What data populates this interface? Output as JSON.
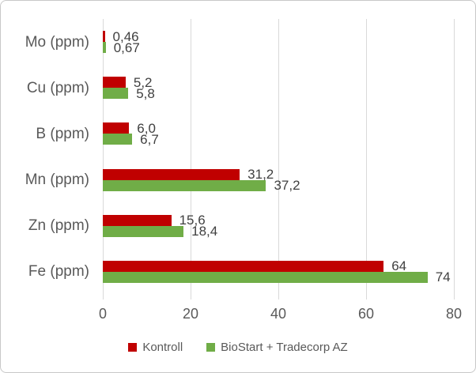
{
  "chart_data": {
    "type": "bar",
    "orientation": "horizontal",
    "title": "",
    "categories": [
      "Mo (ppm)",
      "Cu (ppm)",
      "B (ppm)",
      "Mn (ppm)",
      "Zn (ppm)",
      "Fe (ppm)"
    ],
    "series": [
      {
        "name": "Kontroll",
        "color": "#C00000",
        "values": [
          0.46,
          5.2,
          6.0,
          31.2,
          15.6,
          64
        ],
        "value_labels": [
          "0,46",
          "5,2",
          "6,0",
          "31,2",
          "15,6",
          "64"
        ]
      },
      {
        "name": "BioStart + Tradecorp AZ",
        "color": "#70AD47",
        "values": [
          0.67,
          5.8,
          6.7,
          37.2,
          18.4,
          74
        ],
        "value_labels": [
          "0,67",
          "5,8",
          "6,7",
          "37,2",
          "18,4",
          "74"
        ]
      }
    ],
    "xlim": [
      0,
      80
    ],
    "x_ticks": [
      0,
      20,
      40,
      60,
      80
    ],
    "x_tick_labels": [
      "0",
      "20",
      "40",
      "60",
      "80"
    ],
    "grid": true,
    "legend_position": "bottom",
    "colors": {
      "gridline": "#D9D9D9",
      "tick": "#D9D9D9",
      "category_text": "#595959",
      "axis_text": "#595959",
      "value_text": "#404040",
      "legend_text": "#595959",
      "frame_border": "#C8C8C8",
      "background": "#FFFFFF"
    }
  }
}
